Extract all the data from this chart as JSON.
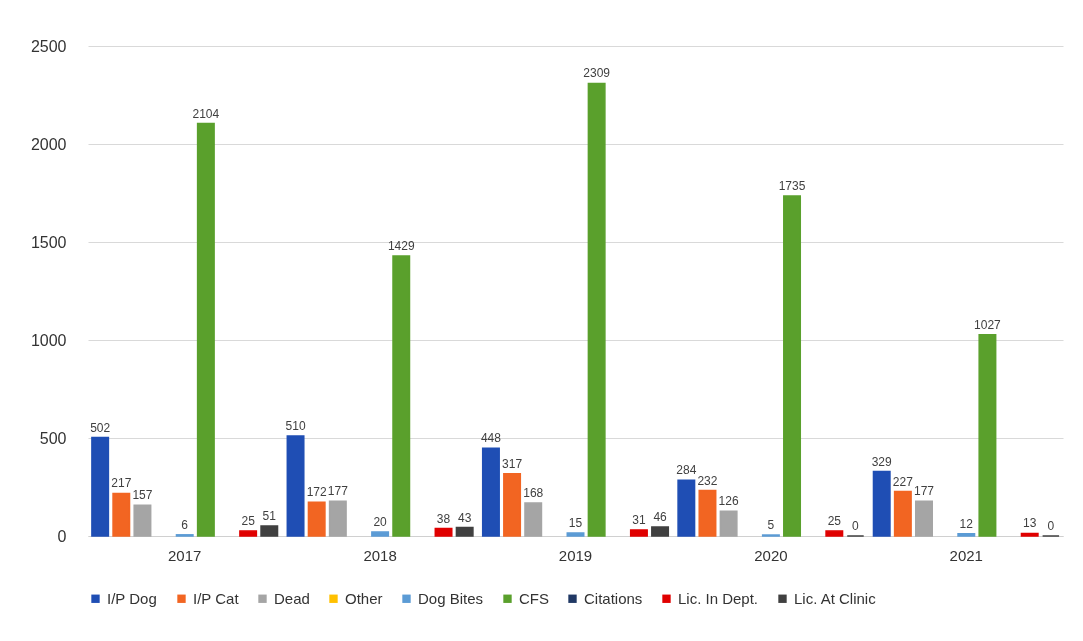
{
  "chart_data": {
    "type": "bar",
    "categories": [
      "2017",
      "2018",
      "2019",
      "2020",
      "2021"
    ],
    "series": [
      {
        "name": "I/P Dog",
        "color": "#1f4eb4",
        "values": [
          502,
          510,
          448,
          284,
          329
        ]
      },
      {
        "name": "I/P Cat",
        "color": "#f26522",
        "values": [
          217,
          172,
          317,
          232,
          227
        ]
      },
      {
        "name": "Dead",
        "color": "#a5a5a5",
        "values": [
          157,
          177,
          168,
          126,
          177
        ]
      },
      {
        "name": "Other",
        "color": "#ffc000",
        "values": [
          null,
          null,
          null,
          null,
          null
        ]
      },
      {
        "name": "Dog Bites",
        "color": "#5b9bd5",
        "values": [
          6,
          20,
          15,
          5,
          12
        ]
      },
      {
        "name": "CFS",
        "color": "#5aa02c",
        "values": [
          2104,
          1429,
          2309,
          1735,
          1027
        ]
      },
      {
        "name": "Citations",
        "color": "#203864",
        "values": [
          null,
          null,
          null,
          null,
          null
        ]
      },
      {
        "name": "Lic. In Dept.",
        "color": "#e00000",
        "values": [
          25,
          38,
          31,
          25,
          13
        ]
      },
      {
        "name": "Lic. At Clinic",
        "color": "#404040",
        "values": [
          51,
          43,
          46,
          0,
          0
        ]
      }
    ],
    "ylim": [
      0,
      2500
    ],
    "yticks": [
      0,
      500,
      1000,
      1500,
      2000,
      2500
    ],
    "grid": "y",
    "legend": "bottom",
    "data_labels": true
  }
}
